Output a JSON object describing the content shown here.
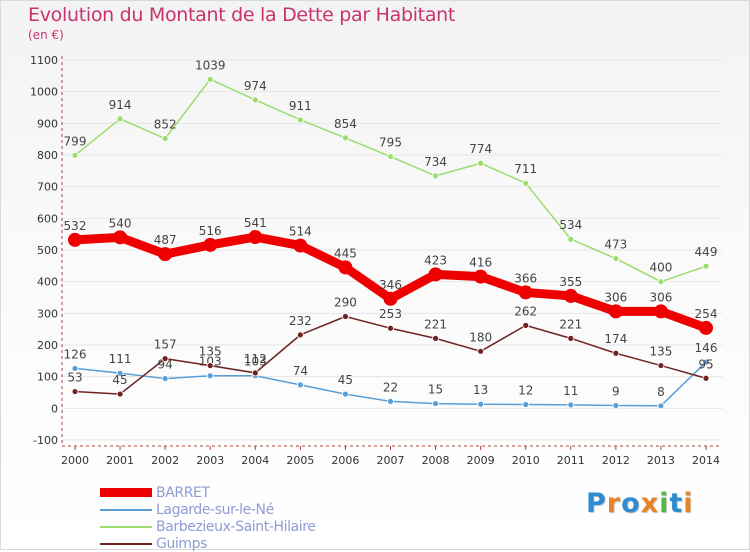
{
  "title": "Evolution du Montant de la Dette par Habitant",
  "subtitle": "(en €)",
  "logo": {
    "text": "Proxiti",
    "letters": [
      {
        "ch": "P",
        "color": "#2e8bd0"
      },
      {
        "ch": "r",
        "color": "#e8832a"
      },
      {
        "ch": "o",
        "color": "#2e8bd0"
      },
      {
        "ch": "x",
        "color": "#e8832a"
      },
      {
        "ch": "i",
        "color": "#56b947"
      },
      {
        "ch": "t",
        "color": "#2e8bd0"
      },
      {
        "ch": "i",
        "color": "#e8832a"
      }
    ]
  },
  "colors": {
    "axis": "#a94444",
    "grid": "#e5e5e5",
    "tick_text": "#333333",
    "value_text": "#444444"
  },
  "chart_data": {
    "type": "line",
    "title": "Evolution du Montant de la Dette par Habitant",
    "subtitle": "(en €)",
    "xlabel": "",
    "ylabel": "",
    "ylim": [
      -100,
      1100
    ],
    "yticks": [
      -100,
      0,
      100,
      200,
      300,
      400,
      500,
      600,
      700,
      800,
      900,
      1000,
      1100
    ],
    "grid": "horizontal",
    "legend_position": "bottom-left",
    "x": [
      "2000",
      "2001",
      "2002",
      "2003",
      "2004",
      "2005",
      "2006",
      "2007",
      "2008",
      "2009",
      "2010",
      "2011",
      "2012",
      "2013",
      "2014"
    ],
    "series": [
      {
        "name": "BARRET",
        "color": "#ee0000",
        "width": "thick",
        "values": [
          532,
          540,
          487,
          516,
          541,
          514,
          445,
          346,
          423,
          416,
          366,
          355,
          306,
          306,
          254
        ]
      },
      {
        "name": "Lagarde-sur-le-Né",
        "color": "#5a9ed6",
        "width": "thin",
        "values": [
          126,
          111,
          94,
          103,
          103,
          74,
          45,
          22,
          15,
          13,
          12,
          11,
          9,
          8,
          146
        ]
      },
      {
        "name": "Barbezieux-Saint-Hilaire",
        "color": "#9bdc6c",
        "width": "thin",
        "values": [
          799,
          914,
          852,
          1039,
          974,
          911,
          854,
          795,
          734,
          774,
          711,
          534,
          473,
          400,
          449
        ]
      },
      {
        "name": "Guimps",
        "color": "#6e2222",
        "width": "thin",
        "values": [
          53,
          45,
          157,
          135,
          112,
          232,
          290,
          253,
          221,
          180,
          262,
          221,
          174,
          135,
          95
        ]
      }
    ]
  }
}
